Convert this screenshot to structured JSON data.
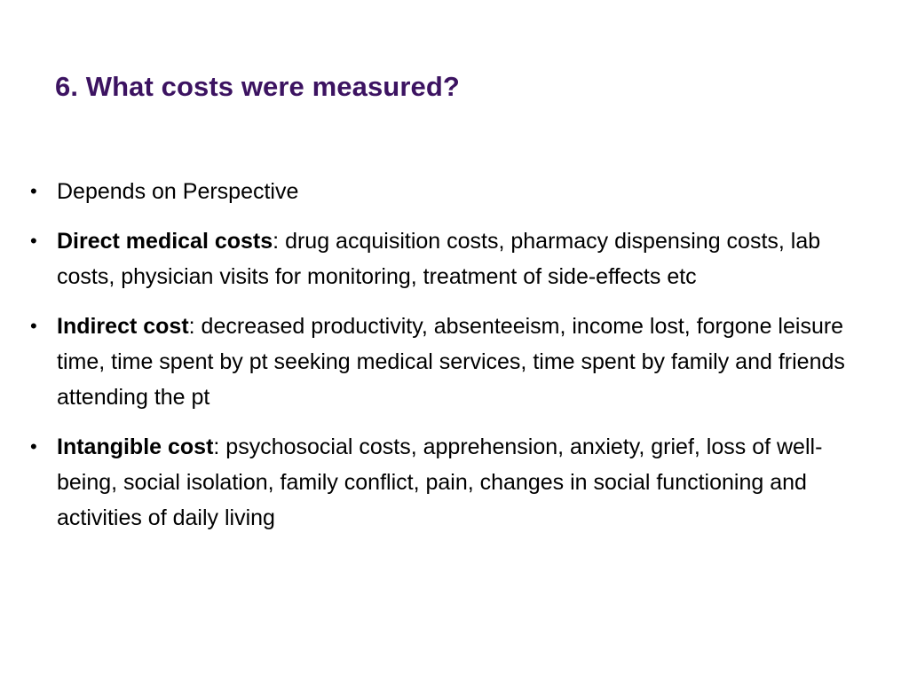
{
  "slide": {
    "title": "6. What costs were measured?",
    "title_color": "#3c1361",
    "bullet_glyph": "•",
    "bullets": [
      {
        "term": "",
        "separator": "",
        "text": "Depends on Perspective"
      },
      {
        "term": "Direct medical costs",
        "separator": ":",
        "text": " drug acquisition costs, pharmacy dispensing costs, lab costs, physician visits for monitoring, treatment of side-effects etc"
      },
      {
        "term": "Indirect cost",
        "separator": ":",
        "text": " decreased productivity, absenteeism, income lost, forgone leisure time, time spent by pt seeking medical services, time spent by family and friends attending the pt"
      },
      {
        "term": "Intangible cost",
        "separator": ":",
        "text": " psychosocial costs, apprehension, anxiety, grief, loss of well-being, social isolation, family conflict, pain, changes in social functioning and activities of daily living"
      }
    ]
  }
}
